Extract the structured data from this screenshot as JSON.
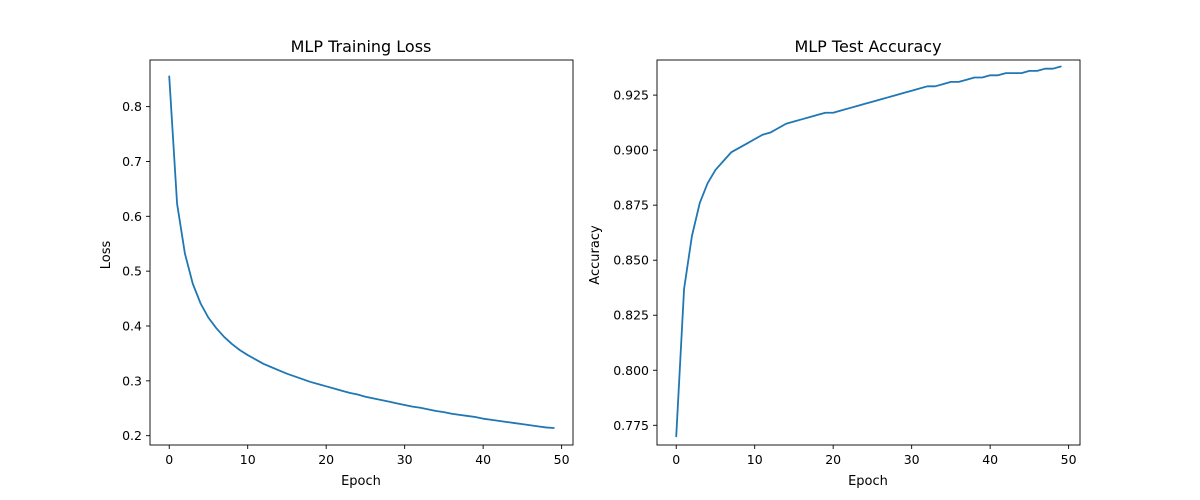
{
  "chart_data": [
    {
      "type": "line",
      "title": "MLP Training Loss",
      "xlabel": "Epoch",
      "ylabel": "Loss",
      "xlim": [
        -2.45,
        51.45
      ],
      "ylim": [
        0.183,
        0.885
      ],
      "xticks": [
        0,
        10,
        20,
        30,
        40,
        50
      ],
      "yticks": [
        0.2,
        0.3,
        0.4,
        0.5,
        0.6,
        0.7,
        0.8
      ],
      "xtick_labels": [
        "0",
        "10",
        "20",
        "30",
        "40",
        "50"
      ],
      "ytick_labels": [
        "0.2",
        "0.3",
        "0.4",
        "0.5",
        "0.6",
        "0.7",
        "0.8"
      ],
      "grid": false,
      "line_color": "#1f77b4",
      "series": [
        {
          "x": [
            0,
            1,
            2,
            3,
            4,
            5,
            6,
            7,
            8,
            9,
            10,
            11,
            12,
            13,
            14,
            15,
            16,
            17,
            18,
            19,
            20,
            21,
            22,
            23,
            24,
            25,
            26,
            27,
            28,
            29,
            30,
            31,
            32,
            33,
            34,
            35,
            36,
            37,
            38,
            39,
            40,
            41,
            42,
            43,
            44,
            45,
            46,
            47,
            48,
            49
          ],
          "values": [
            0.855,
            0.623,
            0.532,
            0.477,
            0.441,
            0.415,
            0.396,
            0.38,
            0.367,
            0.356,
            0.347,
            0.339,
            0.331,
            0.325,
            0.319,
            0.313,
            0.308,
            0.303,
            0.298,
            0.294,
            0.29,
            0.286,
            0.282,
            0.278,
            0.275,
            0.271,
            0.268,
            0.265,
            0.262,
            0.259,
            0.256,
            0.253,
            0.251,
            0.248,
            0.245,
            0.243,
            0.24,
            0.238,
            0.236,
            0.234,
            0.231,
            0.229,
            0.227,
            0.225,
            0.223,
            0.221,
            0.219,
            0.217,
            0.215,
            0.214
          ]
        }
      ]
    },
    {
      "type": "line",
      "title": "MLP Test Accuracy",
      "xlabel": "Epoch",
      "ylabel": "Accuracy",
      "xlim": [
        -2.45,
        51.45
      ],
      "ylim": [
        0.76605,
        0.94095
      ],
      "xticks": [
        0,
        10,
        20,
        30,
        40,
        50
      ],
      "yticks": [
        0.775,
        0.8,
        0.825,
        0.85,
        0.875,
        0.9,
        0.925
      ],
      "xtick_labels": [
        "0",
        "10",
        "20",
        "30",
        "40",
        "50"
      ],
      "ytick_labels": [
        "0.775",
        "0.800",
        "0.825",
        "0.850",
        "0.875",
        "0.900",
        "0.925"
      ],
      "grid": false,
      "line_color": "#1f77b4",
      "series": [
        {
          "x": [
            0,
            1,
            2,
            3,
            4,
            5,
            6,
            7,
            8,
            9,
            10,
            11,
            12,
            13,
            14,
            15,
            16,
            17,
            18,
            19,
            20,
            21,
            22,
            23,
            24,
            25,
            26,
            27,
            28,
            29,
            30,
            31,
            32,
            33,
            34,
            35,
            36,
            37,
            38,
            39,
            40,
            41,
            42,
            43,
            44,
            45,
            46,
            47,
            48,
            49
          ],
          "values": [
            0.77,
            0.837,
            0.861,
            0.876,
            0.885,
            0.891,
            0.895,
            0.899,
            0.901,
            0.903,
            0.905,
            0.907,
            0.908,
            0.91,
            0.912,
            0.913,
            0.914,
            0.915,
            0.916,
            0.917,
            0.917,
            0.918,
            0.919,
            0.92,
            0.921,
            0.922,
            0.923,
            0.924,
            0.925,
            0.926,
            0.927,
            0.928,
            0.929,
            0.929,
            0.93,
            0.931,
            0.931,
            0.932,
            0.933,
            0.933,
            0.934,
            0.934,
            0.935,
            0.935,
            0.935,
            0.936,
            0.936,
            0.937,
            0.937,
            0.938
          ]
        }
      ]
    }
  ]
}
